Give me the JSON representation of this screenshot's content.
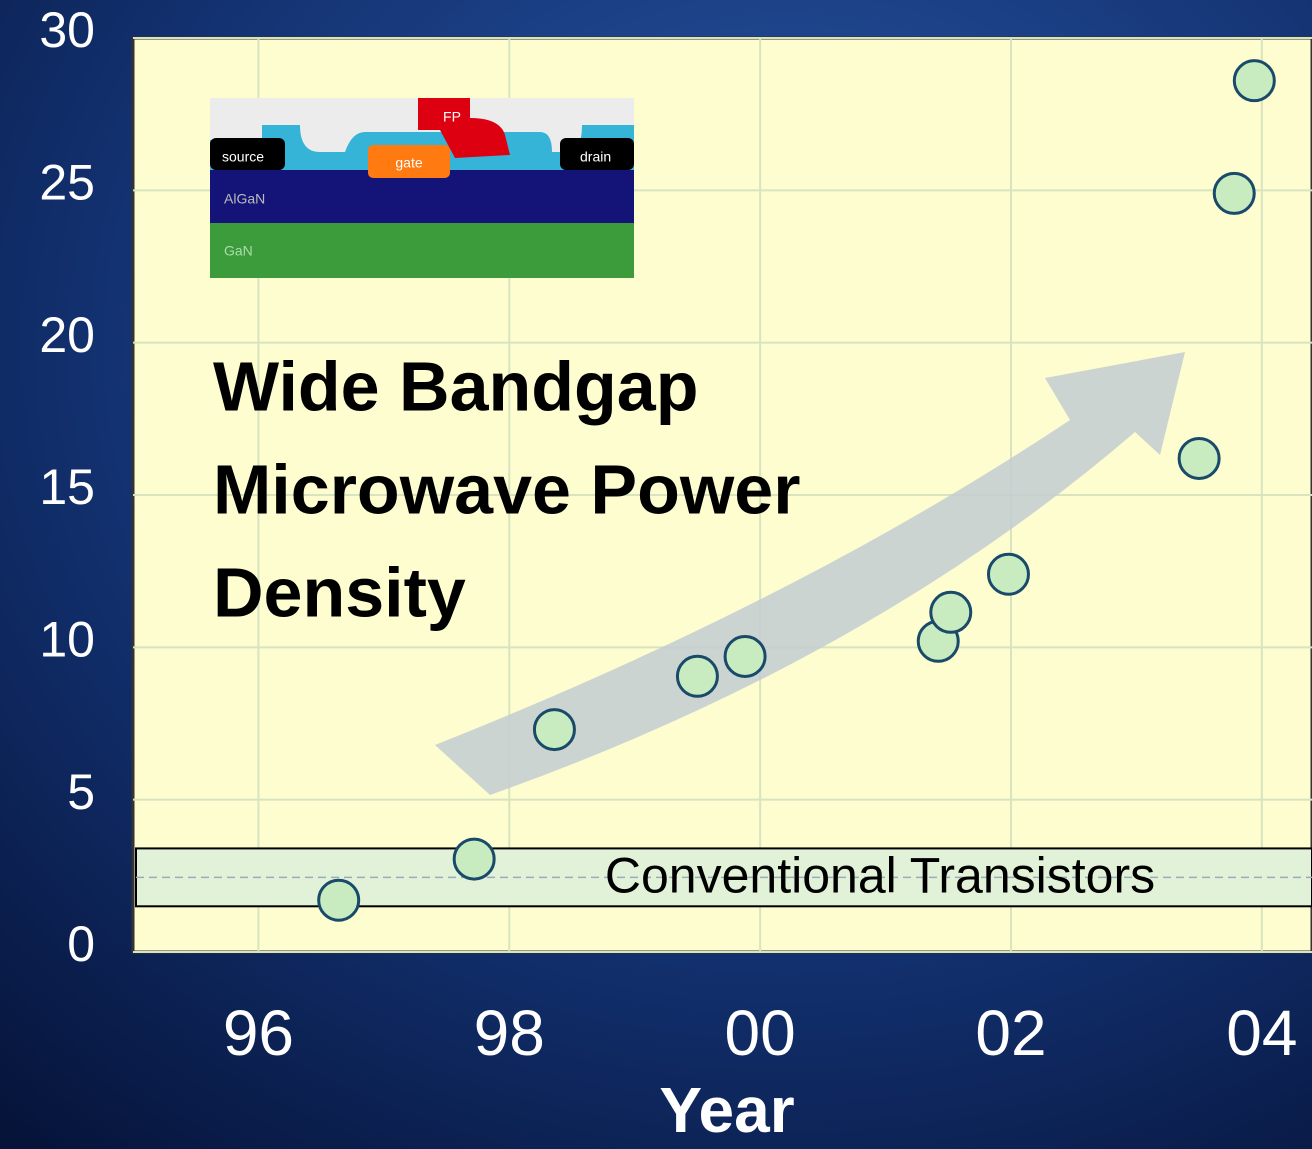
{
  "chart_data": {
    "type": "scatter",
    "title": [
      "Wide Bandgap",
      "Microwave Power",
      "Density"
    ],
    "x_label": "Year",
    "x": [
      1996.64,
      1997.72,
      1998.36,
      1999.5,
      1999.88,
      2001.42,
      2001.52,
      2001.98,
      2003.5,
      2003.78,
      2003.94
    ],
    "values": [
      1.7,
      3.05,
      7.3,
      9.05,
      9.7,
      10.2,
      11.15,
      12.4,
      16.2,
      24.9,
      28.6
    ],
    "color": "#c8ecc0",
    "xlim": [
      1995,
      2004.4
    ],
    "ylim": [
      0,
      30
    ],
    "xticks": [
      {
        "value": 1996,
        "label": "96"
      },
      {
        "value": 1998,
        "label": "98"
      },
      {
        "value": 2000,
        "label": "00"
      },
      {
        "value": 2002,
        "label": "02"
      },
      {
        "value": 2004,
        "label": "04"
      }
    ],
    "yticks": [
      0,
      5,
      10,
      15,
      20,
      25,
      30
    ],
    "grid": true,
    "band": {
      "label": "Conventional Transistors",
      "range": [
        1.5,
        3.4
      ]
    },
    "inset_labels": {
      "source": "source",
      "gate": "gate",
      "drain": "drain",
      "field_plate": "FP",
      "barrier": "AlGaN",
      "buffer": "GaN"
    }
  }
}
